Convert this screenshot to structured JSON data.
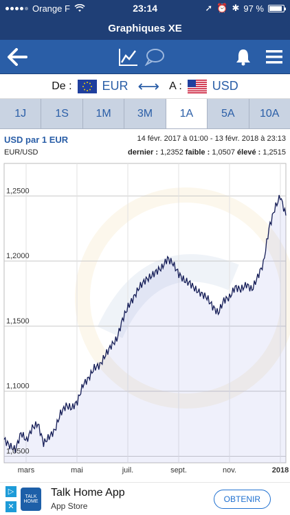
{
  "status": {
    "carrier": "Orange F",
    "time": "23:14",
    "battery": "97 %"
  },
  "app_title": "Graphiques XE",
  "currency": {
    "from_label": "De :",
    "from_code": "EUR",
    "to_label": "A :",
    "to_code": "USD"
  },
  "tabs": [
    {
      "label": "1J"
    },
    {
      "label": "1S"
    },
    {
      "label": "1M"
    },
    {
      "label": "3M"
    },
    {
      "label": "1A",
      "active": true
    },
    {
      "label": "5A"
    },
    {
      "label": "10A"
    }
  ],
  "chart_header": {
    "title": "USD par 1 EUR",
    "range": "14 févr. 2017 à 01:00 - 13 févr. 2018 à 23:13",
    "pair": "EUR/USD",
    "last_label": "dernier :",
    "last_value": "1,2352",
    "low_label": "faible :",
    "low_value": "1,0507",
    "high_label": "élevé :",
    "high_value": "1,2515"
  },
  "chart_data": {
    "type": "area",
    "x_labels": [
      "mars",
      "mai",
      "juil.",
      "sept.",
      "nov.",
      "2018"
    ],
    "y_ticks": [
      "1,0500",
      "1,1000",
      "1,1500",
      "1,2000",
      "1,2500"
    ],
    "y_tick_values": [
      1.05,
      1.1,
      1.15,
      1.2,
      1.25
    ],
    "ylim": [
      1.045,
      1.275
    ],
    "x": [
      0,
      0.02,
      0.04,
      0.06,
      0.08,
      0.1,
      0.12,
      0.14,
      0.16,
      0.18,
      0.2,
      0.22,
      0.24,
      0.26,
      0.28,
      0.3,
      0.32,
      0.34,
      0.36,
      0.38,
      0.4,
      0.42,
      0.44,
      0.46,
      0.48,
      0.5,
      0.52,
      0.54,
      0.56,
      0.58,
      0.6,
      0.62,
      0.64,
      0.66,
      0.68,
      0.7,
      0.72,
      0.74,
      0.76,
      0.78,
      0.8,
      0.82,
      0.84,
      0.86,
      0.88,
      0.9,
      0.92,
      0.94,
      0.96,
      0.98,
      1.0
    ],
    "values": [
      1.063,
      1.058,
      1.055,
      1.068,
      1.062,
      1.072,
      1.075,
      1.06,
      1.065,
      1.07,
      1.083,
      1.089,
      1.087,
      1.092,
      1.105,
      1.11,
      1.118,
      1.12,
      1.128,
      1.135,
      1.14,
      1.155,
      1.165,
      1.172,
      1.18,
      1.185,
      1.188,
      1.192,
      1.195,
      1.202,
      1.198,
      1.19,
      1.185,
      1.183,
      1.178,
      1.175,
      1.172,
      1.165,
      1.16,
      1.17,
      1.172,
      1.18,
      1.178,
      1.182,
      1.178,
      1.188,
      1.198,
      1.225,
      1.24,
      1.25,
      1.235
    ]
  },
  "ad": {
    "app_name": "Talk Home App",
    "store": "App Store",
    "cta": "OBTENIR",
    "logo_text": "TALK HOME"
  }
}
